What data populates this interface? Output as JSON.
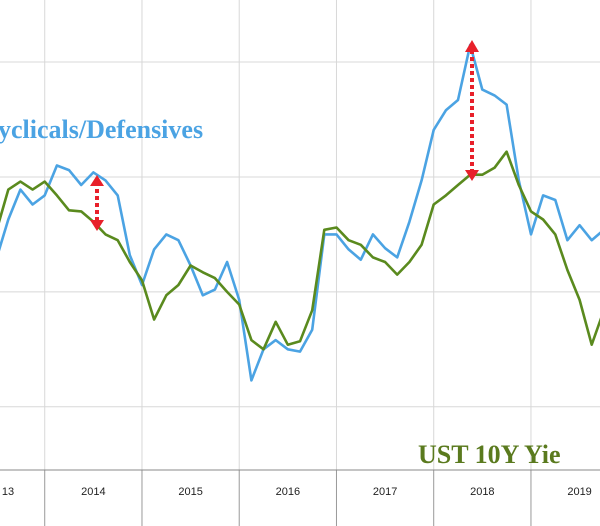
{
  "chart_data": {
    "type": "line",
    "annotations": [
      "yclicals/Defensives",
      "UST 10Y Yie"
    ],
    "x": [
      2013.5,
      2013.625,
      2013.75,
      2013.875,
      2014,
      2014.125,
      2014.25,
      2014.375,
      2014.5,
      2014.625,
      2014.75,
      2014.875,
      2015,
      2015.125,
      2015.25,
      2015.375,
      2015.5,
      2015.625,
      2015.75,
      2015.875,
      2016,
      2016.125,
      2016.25,
      2016.375,
      2016.5,
      2016.625,
      2016.75,
      2016.875,
      2017,
      2017.125,
      2017.25,
      2017.375,
      2017.5,
      2017.625,
      2017.75,
      2017.875,
      2018,
      2018.125,
      2018.25,
      2018.375,
      2018.5,
      2018.625,
      2018.75,
      2018.875,
      2019,
      2019.125,
      2019.25,
      2019.375,
      2019.5,
      2019.625,
      2019.75
    ],
    "series": [
      {
        "color": "#4ba3e3",
        "values": [
          2.28,
          2.63,
          2.89,
          2.76,
          2.84,
          3.1,
          3.06,
          2.93,
          3.04,
          2.97,
          2.84,
          2.32,
          2.06,
          2.37,
          2.5,
          2.45,
          2.23,
          1.97,
          2.02,
          2.26,
          1.93,
          1.23,
          1.5,
          1.58,
          1.5,
          1.48,
          1.67,
          2.5,
          2.5,
          2.37,
          2.28,
          2.5,
          2.38,
          2.3,
          2.61,
          2.97,
          3.41,
          3.58,
          3.67,
          4.15,
          3.76,
          3.71,
          3.63,
          2.97,
          2.5,
          2.84,
          2.8,
          2.45,
          2.58,
          2.45,
          2.54
        ]
      },
      {
        "color": "#5a8a1e",
        "values": [
          2.52,
          2.89,
          2.96,
          2.89,
          2.96,
          2.84,
          2.71,
          2.7,
          2.61,
          2.5,
          2.45,
          2.26,
          2.1,
          1.76,
          1.97,
          2.06,
          2.23,
          2.17,
          2.12,
          2.0,
          1.89,
          1.58,
          1.5,
          1.74,
          1.54,
          1.57,
          1.84,
          2.54,
          2.56,
          2.45,
          2.41,
          2.3,
          2.26,
          2.15,
          2.26,
          2.41,
          2.76,
          2.84,
          2.93,
          3.02,
          3.02,
          3.08,
          3.22,
          2.93,
          2.7,
          2.63,
          2.5,
          2.19,
          1.93,
          1.54,
          1.84
        ]
      }
    ],
    "xlim": [
      2013.54,
      2019.71
    ],
    "xticks": [
      {
        "value": 2013,
        "label": "13"
      },
      2014,
      2015,
      2016,
      2017,
      2018,
      2019
    ],
    "ylim": [
      0.45,
      4.54
    ],
    "yticks": [
      1,
      2,
      3,
      4
    ],
    "grid": true
  }
}
